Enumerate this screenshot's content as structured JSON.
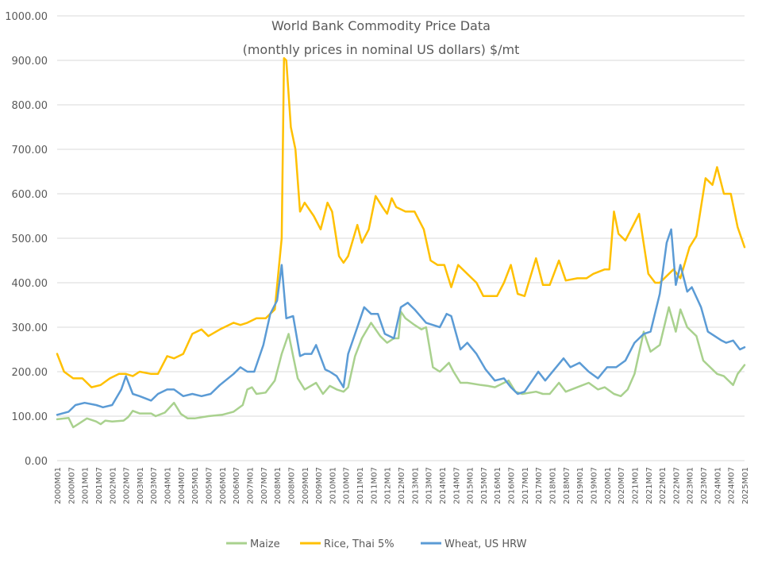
{
  "chart_data": {
    "type": "line",
    "title": "World Bank Commodity Price Data",
    "subtitle": "(monthly prices in nominal US dollars) $/mt",
    "ylim": [
      0,
      1000
    ],
    "y_ticks": [
      "0.00",
      "100.00",
      "200.00",
      "300.00",
      "400.00",
      "500.00",
      "600.00",
      "700.00",
      "800.00",
      "900.00",
      "1000.00"
    ],
    "x_ticks": [
      "2000M01",
      "2000M07",
      "2001M01",
      "2001M07",
      "2002M01",
      "2002M07",
      "2003M01",
      "2003M07",
      "2004M01",
      "2004M07",
      "2005M01",
      "2005M07",
      "2006M01",
      "2006M07",
      "2007M01",
      "2007M07",
      "2008M01",
      "2008M07",
      "2009M01",
      "2009M07",
      "2010M01",
      "2010M07",
      "2011M01",
      "2011M07",
      "2012M01",
      "2012M07",
      "2013M01",
      "2013M07",
      "2014M01",
      "2014M07",
      "2015M01",
      "2015M07",
      "2016M01",
      "2016M07",
      "2017M01",
      "2017M07",
      "2018M01",
      "2018M07",
      "2019M01",
      "2019M07",
      "2020M01",
      "2020M07",
      "2021M01",
      "2021M07",
      "2022M01",
      "2022M07",
      "2023M01",
      "2023M07",
      "2024M01",
      "2024M07",
      "2025M01"
    ],
    "grid": "horizontal",
    "legend_position": "bottom",
    "series": [
      {
        "name": "Maize",
        "color": "#a9d18e",
        "points": [
          [
            "2000M01",
            93
          ],
          [
            "2000M06",
            96
          ],
          [
            "2000M08",
            75
          ],
          [
            "2000M11",
            85
          ],
          [
            "2001M02",
            95
          ],
          [
            "2001M06",
            88
          ],
          [
            "2001M08",
            82
          ],
          [
            "2001M10",
            90
          ],
          [
            "2002M01",
            88
          ],
          [
            "2002M06",
            90
          ],
          [
            "2002M08",
            98
          ],
          [
            "2002M10",
            112
          ],
          [
            "2003M01",
            106
          ],
          [
            "2003M06",
            106
          ],
          [
            "2003M08",
            100
          ],
          [
            "2003M12",
            108
          ],
          [
            "2004M04",
            130
          ],
          [
            "2004M07",
            105
          ],
          [
            "2004M10",
            95
          ],
          [
            "2005M01",
            95
          ],
          [
            "2005M07",
            100
          ],
          [
            "2006M01",
            103
          ],
          [
            "2006M06",
            110
          ],
          [
            "2006M10",
            125
          ],
          [
            "2006M12",
            160
          ],
          [
            "2007M02",
            165
          ],
          [
            "2007M04",
            150
          ],
          [
            "2007M08",
            153
          ],
          [
            "2007M12",
            180
          ],
          [
            "2008M03",
            240
          ],
          [
            "2008M06",
            285
          ],
          [
            "2008M08",
            235
          ],
          [
            "2008M10",
            185
          ],
          [
            "2009M01",
            160
          ],
          [
            "2009M06",
            175
          ],
          [
            "2009M09",
            150
          ],
          [
            "2009M12",
            168
          ],
          [
            "2010M03",
            160
          ],
          [
            "2010M06",
            155
          ],
          [
            "2010M08",
            165
          ],
          [
            "2010M11",
            235
          ],
          [
            "2011M02",
            275
          ],
          [
            "2011M06",
            310
          ],
          [
            "2011M10",
            280
          ],
          [
            "2012M01",
            265
          ],
          [
            "2012M04",
            275
          ],
          [
            "2012M06",
            275
          ],
          [
            "2012M07",
            335
          ],
          [
            "2012M09",
            320
          ],
          [
            "2013M01",
            305
          ],
          [
            "2013M04",
            295
          ],
          [
            "2013M06",
            300
          ],
          [
            "2013M09",
            210
          ],
          [
            "2013M12",
            200
          ],
          [
            "2014M04",
            220
          ],
          [
            "2014M06",
            200
          ],
          [
            "2014M09",
            175
          ],
          [
            "2014M12",
            175
          ],
          [
            "2015M06",
            170
          ],
          [
            "2015M09",
            168
          ],
          [
            "2015M12",
            165
          ],
          [
            "2016M06",
            180
          ],
          [
            "2016M09",
            155
          ],
          [
            "2016M12",
            150
          ],
          [
            "2017M06",
            155
          ],
          [
            "2017M09",
            150
          ],
          [
            "2017M12",
            150
          ],
          [
            "2018M04",
            175
          ],
          [
            "2018M07",
            155
          ],
          [
            "2018M12",
            165
          ],
          [
            "2019M05",
            175
          ],
          [
            "2019M09",
            160
          ],
          [
            "2019M12",
            165
          ],
          [
            "2020M04",
            150
          ],
          [
            "2020M07",
            145
          ],
          [
            "2020M10",
            160
          ],
          [
            "2021M01",
            195
          ],
          [
            "2021M05",
            290
          ],
          [
            "2021M08",
            245
          ],
          [
            "2021M12",
            260
          ],
          [
            "2022M04",
            345
          ],
          [
            "2022M07",
            290
          ],
          [
            "2022M09",
            340
          ],
          [
            "2022M12",
            300
          ],
          [
            "2023M04",
            280
          ],
          [
            "2023M07",
            225
          ],
          [
            "2023M10",
            210
          ],
          [
            "2024M01",
            195
          ],
          [
            "2024M04",
            190
          ],
          [
            "2024M08",
            170
          ],
          [
            "2024M10",
            195
          ],
          [
            "2025M01",
            215
          ]
        ]
      },
      {
        "name": "Rice, Thai 5%",
        "color": "#ffc000",
        "points": [
          [
            "2000M01",
            240
          ],
          [
            "2000M04",
            200
          ],
          [
            "2000M08",
            185
          ],
          [
            "2000M12",
            185
          ],
          [
            "2001M04",
            165
          ],
          [
            "2001M08",
            170
          ],
          [
            "2001M12",
            185
          ],
          [
            "2002M04",
            195
          ],
          [
            "2002M07",
            195
          ],
          [
            "2002M10",
            190
          ],
          [
            "2003M01",
            200
          ],
          [
            "2003M06",
            195
          ],
          [
            "2003M09",
            195
          ],
          [
            "2004M01",
            235
          ],
          [
            "2004M04",
            230
          ],
          [
            "2004M08",
            240
          ],
          [
            "2004M12",
            285
          ],
          [
            "2005M04",
            295
          ],
          [
            "2005M07",
            280
          ],
          [
            "2005M12",
            295
          ],
          [
            "2006M06",
            310
          ],
          [
            "2006M09",
            305
          ],
          [
            "2006M12",
            310
          ],
          [
            "2007M04",
            320
          ],
          [
            "2007M08",
            320
          ],
          [
            "2007M12",
            340
          ],
          [
            "2008M03",
            500
          ],
          [
            "2008M04",
            905
          ],
          [
            "2008M05",
            900
          ],
          [
            "2008M07",
            750
          ],
          [
            "2008M09",
            700
          ],
          [
            "2008M11",
            560
          ],
          [
            "2009M01",
            580
          ],
          [
            "2009M05",
            550
          ],
          [
            "2009M08",
            520
          ],
          [
            "2009M11",
            580
          ],
          [
            "2010M01",
            560
          ],
          [
            "2010M04",
            460
          ],
          [
            "2010M06",
            445
          ],
          [
            "2010M08",
            460
          ],
          [
            "2010M12",
            530
          ],
          [
            "2011M02",
            490
          ],
          [
            "2011M05",
            520
          ],
          [
            "2011M08",
            595
          ],
          [
            "2011M11",
            570
          ],
          [
            "2012M01",
            555
          ],
          [
            "2012M03",
            590
          ],
          [
            "2012M05",
            570
          ],
          [
            "2012M09",
            560
          ],
          [
            "2013M01",
            560
          ],
          [
            "2013M05",
            520
          ],
          [
            "2013M08",
            450
          ],
          [
            "2013M11",
            440
          ],
          [
            "2014M02",
            440
          ],
          [
            "2014M05",
            390
          ],
          [
            "2014M08",
            440
          ],
          [
            "2014M12",
            420
          ],
          [
            "2015M04",
            400
          ],
          [
            "2015M07",
            370
          ],
          [
            "2015M10",
            370
          ],
          [
            "2016M01",
            370
          ],
          [
            "2016M04",
            400
          ],
          [
            "2016M07",
            440
          ],
          [
            "2016M10",
            375
          ],
          [
            "2017M01",
            370
          ],
          [
            "2017M06",
            455
          ],
          [
            "2017M09",
            395
          ],
          [
            "2017M12",
            395
          ],
          [
            "2018M04",
            450
          ],
          [
            "2018M07",
            405
          ],
          [
            "2018M12",
            410
          ],
          [
            "2019M04",
            410
          ],
          [
            "2019M07",
            420
          ],
          [
            "2019M12",
            430
          ],
          [
            "2020M02",
            430
          ],
          [
            "2020M04",
            560
          ],
          [
            "2020M06",
            510
          ],
          [
            "2020M09",
            495
          ],
          [
            "2020M12",
            525
          ],
          [
            "2021M03",
            555
          ],
          [
            "2021M07",
            420
          ],
          [
            "2021M10",
            400
          ],
          [
            "2021M12",
            400
          ],
          [
            "2022M06",
            430
          ],
          [
            "2022M09",
            410
          ],
          [
            "2023M01",
            480
          ],
          [
            "2023M04",
            505
          ],
          [
            "2023M08",
            635
          ],
          [
            "2023M11",
            620
          ],
          [
            "2024M01",
            660
          ],
          [
            "2024M04",
            600
          ],
          [
            "2024M07",
            600
          ],
          [
            "2024M10",
            525
          ],
          [
            "2025M01",
            480
          ]
        ]
      },
      {
        "name": "Wheat, US HRW",
        "color": "#5b9bd5",
        "points": [
          [
            "2000M01",
            103
          ],
          [
            "2000M06",
            110
          ],
          [
            "2000M09",
            125
          ],
          [
            "2001M01",
            130
          ],
          [
            "2001M06",
            125
          ],
          [
            "2001M09",
            120
          ],
          [
            "2002M01",
            125
          ],
          [
            "2002M05",
            160
          ],
          [
            "2002M07",
            190
          ],
          [
            "2002M10",
            150
          ],
          [
            "2003M01",
            145
          ],
          [
            "2003M06",
            135
          ],
          [
            "2003M09",
            150
          ],
          [
            "2004M01",
            160
          ],
          [
            "2004M04",
            160
          ],
          [
            "2004M08",
            145
          ],
          [
            "2004M12",
            150
          ],
          [
            "2005M04",
            145
          ],
          [
            "2005M08",
            150
          ],
          [
            "2005M12",
            170
          ],
          [
            "2006M06",
            195
          ],
          [
            "2006M09",
            210
          ],
          [
            "2006M12",
            200
          ],
          [
            "2007M03",
            200
          ],
          [
            "2007M07",
            260
          ],
          [
            "2007M10",
            330
          ],
          [
            "2008M01",
            360
          ],
          [
            "2008M03",
            440
          ],
          [
            "2008M05",
            320
          ],
          [
            "2008M08",
            325
          ],
          [
            "2008M11",
            235
          ],
          [
            "2009M01",
            240
          ],
          [
            "2009M04",
            240
          ],
          [
            "2009M06",
            260
          ],
          [
            "2009M10",
            205
          ],
          [
            "2009M12",
            200
          ],
          [
            "2010M03",
            190
          ],
          [
            "2010M06",
            165
          ],
          [
            "2010M08",
            240
          ],
          [
            "2010M12",
            300
          ],
          [
            "2011M03",
            345
          ],
          [
            "2011M06",
            330
          ],
          [
            "2011M09",
            330
          ],
          [
            "2011M12",
            285
          ],
          [
            "2012M04",
            275
          ],
          [
            "2012M07",
            345
          ],
          [
            "2012M10",
            355
          ],
          [
            "2013M01",
            340
          ],
          [
            "2013M06",
            310
          ],
          [
            "2013M09",
            305
          ],
          [
            "2013M12",
            300
          ],
          [
            "2014M03",
            330
          ],
          [
            "2014M05",
            325
          ],
          [
            "2014M09",
            250
          ],
          [
            "2014M12",
            265
          ],
          [
            "2015M04",
            240
          ],
          [
            "2015M08",
            205
          ],
          [
            "2015M12",
            180
          ],
          [
            "2016M04",
            185
          ],
          [
            "2016M07",
            165
          ],
          [
            "2016M10",
            150
          ],
          [
            "2017M01",
            155
          ],
          [
            "2017M05",
            185
          ],
          [
            "2017M07",
            200
          ],
          [
            "2017M10",
            180
          ],
          [
            "2018M02",
            205
          ],
          [
            "2018M06",
            230
          ],
          [
            "2018M09",
            210
          ],
          [
            "2019M01",
            220
          ],
          [
            "2019M05",
            200
          ],
          [
            "2019M09",
            185
          ],
          [
            "2020M01",
            210
          ],
          [
            "2020M05",
            210
          ],
          [
            "2020M09",
            225
          ],
          [
            "2021M01",
            265
          ],
          [
            "2021M05",
            285
          ],
          [
            "2021M08",
            290
          ],
          [
            "2021M12",
            375
          ],
          [
            "2022M03",
            490
          ],
          [
            "2022M05",
            520
          ],
          [
            "2022M07",
            395
          ],
          [
            "2022M09",
            440
          ],
          [
            "2022M12",
            380
          ],
          [
            "2023M02",
            390
          ],
          [
            "2023M06",
            345
          ],
          [
            "2023M09",
            290
          ],
          [
            "2023M12",
            280
          ],
          [
            "2024M03",
            270
          ],
          [
            "2024M05",
            265
          ],
          [
            "2024M08",
            270
          ],
          [
            "2024M11",
            250
          ],
          [
            "2025M01",
            255
          ]
        ]
      }
    ]
  }
}
